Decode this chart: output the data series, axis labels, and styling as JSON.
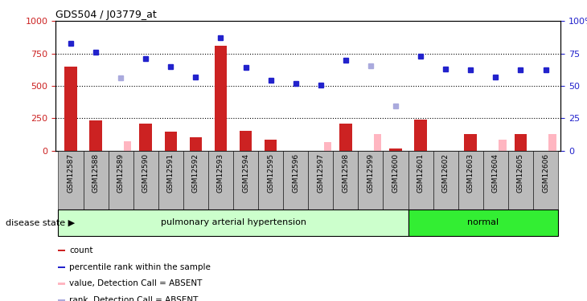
{
  "title": "GDS504 / J03779_at",
  "samples": [
    "GSM12587",
    "GSM12588",
    "GSM12589",
    "GSM12590",
    "GSM12591",
    "GSM12592",
    "GSM12593",
    "GSM12594",
    "GSM12595",
    "GSM12596",
    "GSM12597",
    "GSM12598",
    "GSM12599",
    "GSM12600",
    "GSM12601",
    "GSM12602",
    "GSM12603",
    "GSM12604",
    "GSM12605",
    "GSM12606"
  ],
  "count_present": [
    650,
    230,
    null,
    205,
    145,
    100,
    810,
    150,
    85,
    null,
    null,
    205,
    null,
    15,
    240,
    null,
    130,
    null,
    130,
    null
  ],
  "count_absent": [
    null,
    null,
    70,
    null,
    null,
    null,
    null,
    null,
    null,
    null,
    65,
    null,
    125,
    null,
    null,
    null,
    null,
    85,
    null,
    125
  ],
  "rank_present": [
    830,
    760,
    null,
    710,
    645,
    570,
    870,
    640,
    540,
    515,
    505,
    695,
    null,
    null,
    730,
    630,
    625,
    570,
    625,
    625
  ],
  "rank_absent": [
    null,
    null,
    560,
    null,
    null,
    null,
    null,
    null,
    null,
    null,
    null,
    null,
    655,
    345,
    null,
    null,
    null,
    null,
    null,
    null
  ],
  "disease_groups": [
    {
      "label": "pulmonary arterial hypertension",
      "start": 0,
      "end": 14,
      "color": "#CCFFCC"
    },
    {
      "label": "normal",
      "start": 14,
      "end": 20,
      "color": "#33EE33"
    }
  ],
  "ylim_left": [
    0,
    1000
  ],
  "ylim_right": [
    0,
    100
  ],
  "yticks_left": [
    0,
    250,
    500,
    750,
    1000
  ],
  "yticks_right": [
    0,
    25,
    50,
    75,
    100
  ],
  "dotted_lines": [
    250,
    500,
    750
  ],
  "count_color": "#CC2222",
  "count_absent_color": "#FFB6C1",
  "rank_color": "#2222CC",
  "rank_absent_color": "#AAAADD",
  "legend_items": [
    {
      "label": "count",
      "color": "#CC2222"
    },
    {
      "label": "percentile rank within the sample",
      "color": "#2222CC"
    },
    {
      "label": "value, Detection Call = ABSENT",
      "color": "#FFB6C1"
    },
    {
      "label": "rank, Detection Call = ABSENT",
      "color": "#AAAADD"
    }
  ],
  "disease_state_label": "disease state",
  "xtick_bg_color": "#BBBBBB",
  "plot_bg_color": "#FFFFFF"
}
